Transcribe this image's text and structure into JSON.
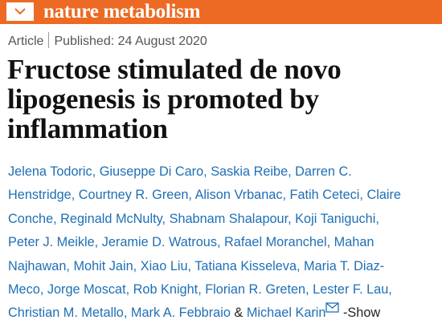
{
  "header": {
    "journal": "nature metabolism"
  },
  "article": {
    "type": "Article",
    "published": "Published: 24 August 2020",
    "title_lines": [
      "Fructose stimulated de novo",
      "lipogenesis is promoted by",
      "inflammation"
    ],
    "author_lines": [
      "Jelena Todoric, Giuseppe Di Caro, Saskia Reibe, Darren C.",
      "Henstridge, Courtney R. Green, Alison Vrbanac, Fatih Ceteci, Claire",
      "Conche, Reginald McNulty, Shabnam Shalapour, Koji Taniguchi,",
      "Peter J. Meikle, Jeramie D. Watrous, Rafael Moranchel, Mahan",
      "Najhawan, Mohit Jain, Xiao Liu, Tatiana Kisseleva, Maria T. Diaz-",
      "Meco, Jorge Moscat, Rob Knight, Florian R. Greten, Lester F. Lau,"
    ],
    "last_line": {
      "authors": "Christian M. Metallo, Mark A. Febbraio",
      "conjunction": "&",
      "last_author": "Michael Karin",
      "show": "-Show"
    }
  }
}
